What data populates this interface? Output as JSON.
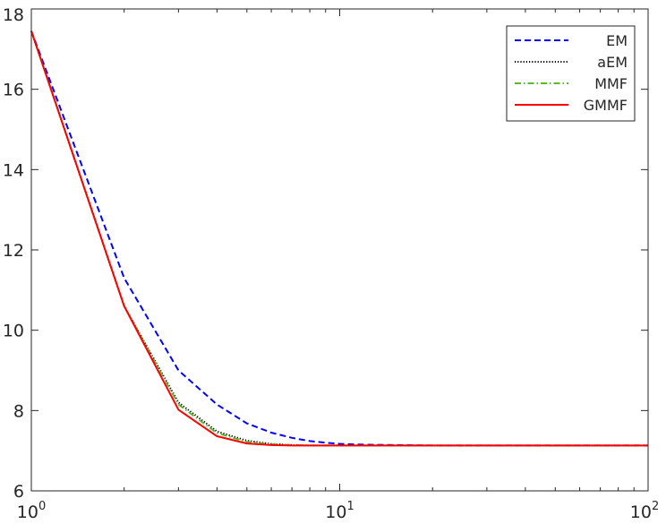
{
  "chart_data": {
    "type": "line",
    "title": "",
    "xlabel": "",
    "ylabel": "",
    "xscale": "log",
    "xlim": [
      1,
      100
    ],
    "ylim": [
      6,
      18
    ],
    "grid": false,
    "legend_placement": "top-right",
    "x_ticks": [
      {
        "base": "10",
        "exp": "0",
        "value": 1
      },
      {
        "base": "10",
        "exp": "1",
        "value": 10
      },
      {
        "base": "10",
        "exp": "2",
        "value": 100
      }
    ],
    "y_ticks": [
      "6",
      "8",
      "10",
      "12",
      "14",
      "16",
      "18"
    ],
    "series": [
      {
        "name": "EM",
        "color": "#0000ff",
        "dash": "dashed",
        "x": [
          1,
          2,
          3,
          4,
          5,
          6,
          7,
          8,
          9,
          10,
          12,
          15,
          20,
          30,
          50,
          100
        ],
        "y": [
          17.45,
          11.3,
          9.0,
          8.15,
          7.68,
          7.45,
          7.32,
          7.24,
          7.2,
          7.17,
          7.15,
          7.14,
          7.13,
          7.13,
          7.13,
          7.13
        ]
      },
      {
        "name": "aEM",
        "color": "#000000",
        "dash": "dotted",
        "x": [
          1,
          2,
          3,
          4,
          5,
          6,
          7,
          8,
          10,
          20,
          50,
          100
        ],
        "y": [
          17.45,
          10.6,
          8.2,
          7.48,
          7.25,
          7.17,
          7.14,
          7.13,
          7.13,
          7.13,
          7.13,
          7.13
        ]
      },
      {
        "name": "MMF",
        "color": "#5cb82e",
        "dash": "dashdot",
        "x": [
          1,
          2,
          3,
          4,
          5,
          6,
          7,
          8,
          10,
          20,
          50,
          100
        ],
        "y": [
          17.45,
          10.6,
          8.15,
          7.44,
          7.22,
          7.16,
          7.14,
          7.13,
          7.13,
          7.13,
          7.13,
          7.13
        ]
      },
      {
        "name": "GMMF",
        "color": "#ff0000",
        "dash": "solid",
        "x": [
          1,
          2,
          3,
          4,
          5,
          6,
          7,
          8,
          10,
          20,
          50,
          100
        ],
        "y": [
          17.45,
          10.6,
          8.02,
          7.36,
          7.18,
          7.14,
          7.13,
          7.13,
          7.13,
          7.13,
          7.13,
          7.13
        ]
      }
    ]
  }
}
